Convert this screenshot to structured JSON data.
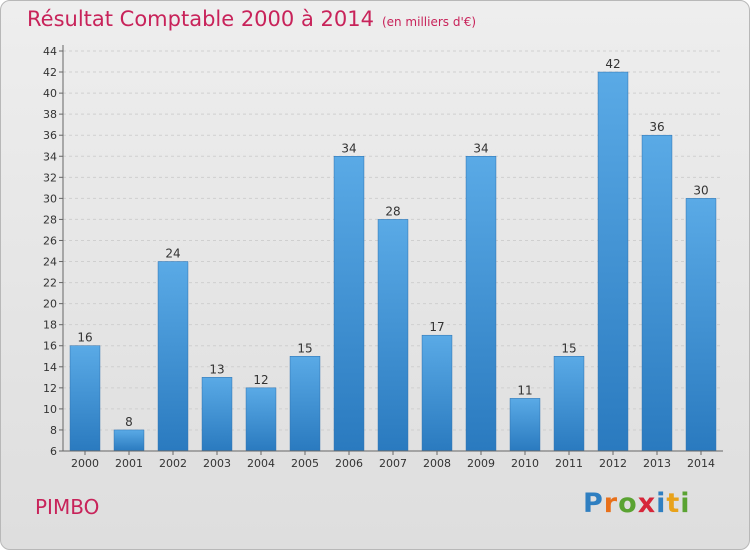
{
  "header": {
    "title": "Résultat Comptable 2000 à 2014",
    "unit": "(en milliers d'€)"
  },
  "footer": {
    "commune": "PIMBO",
    "logo_letters": [
      "P",
      "r",
      "o",
      "x",
      "i",
      "t",
      "i"
    ]
  },
  "colors": {
    "title": "#c8235a",
    "bar_top": "#5aaae6",
    "bar_bottom": "#2a7abf",
    "logo": [
      "#2f7fc1",
      "#e8701a",
      "#5aa332",
      "#d6263a",
      "#2f7fc1",
      "#e8a21a",
      "#5aa332"
    ]
  },
  "chart_data": {
    "type": "bar",
    "title": "Résultat Comptable 2000 à 2014",
    "xlabel": "",
    "ylabel": "",
    "categories": [
      "2000",
      "2001",
      "2002",
      "2003",
      "2004",
      "2005",
      "2006",
      "2007",
      "2008",
      "2009",
      "2010",
      "2011",
      "2012",
      "2013",
      "2014"
    ],
    "values": [
      16,
      8,
      24,
      13,
      12,
      15,
      34,
      28,
      17,
      34,
      11,
      15,
      42,
      36,
      30
    ],
    "ylim": [
      6,
      44
    ],
    "yticks": [
      6,
      8,
      10,
      12,
      14,
      16,
      18,
      20,
      22,
      24,
      26,
      28,
      30,
      32,
      34,
      36,
      38,
      40,
      42,
      44
    ],
    "grid": true
  }
}
